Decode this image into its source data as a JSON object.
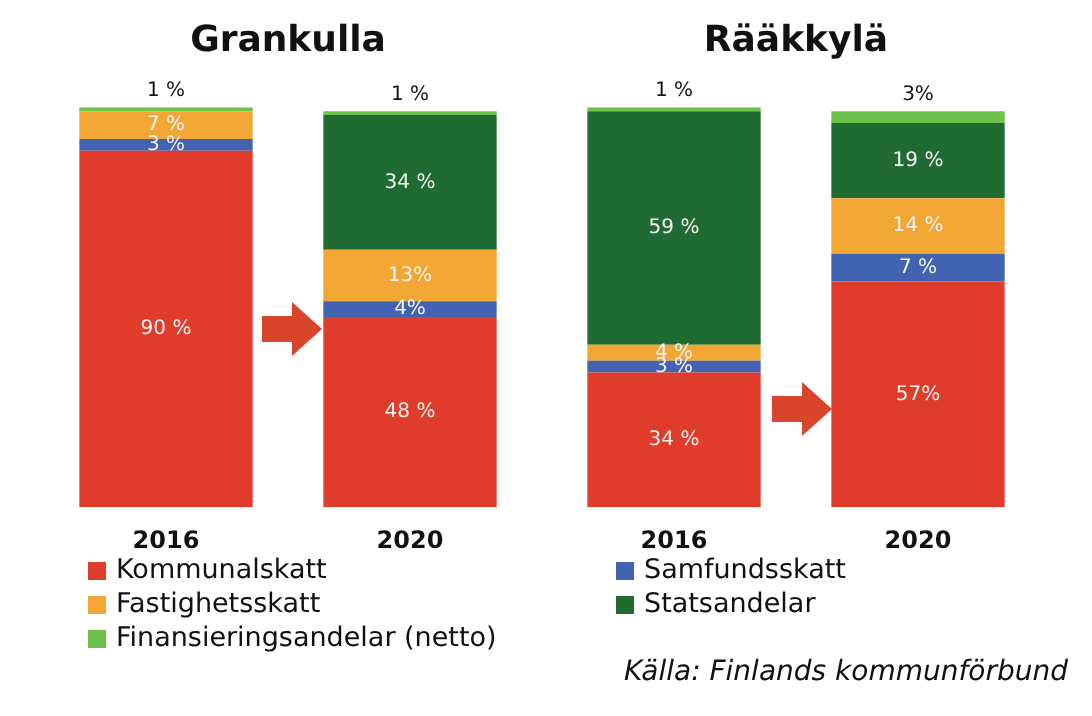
{
  "chart_data": [
    {
      "type": "bar",
      "title": "Grankulla",
      "categories": [
        "2016",
        "2020"
      ],
      "stacked": true,
      "legend": "bottom",
      "series": [
        {
          "name": "Kommunalskatt",
          "color": "#e03c2c",
          "values": [
            90,
            48
          ],
          "value_labels": [
            "90 %",
            "48 %"
          ]
        },
        {
          "name": "Samfundsskatt",
          "color": "#4262b2",
          "values": [
            3,
            4
          ],
          "value_labels": [
            "3 %",
            "4%"
          ]
        },
        {
          "name": "Fastighetsskatt",
          "color": "#f2a735",
          "values": [
            7,
            13
          ],
          "value_labels": [
            "7 %",
            "13%"
          ]
        },
        {
          "name": "Statsandelar",
          "color": "#1f6b32",
          "values": [
            null,
            34
          ],
          "value_labels": [
            null,
            "34 %"
          ]
        },
        {
          "name": "Finansieringsandelar (netto)",
          "color": "#6cc24a",
          "values": [
            1,
            1
          ],
          "value_labels": [
            "1 %",
            "1 %"
          ]
        }
      ]
    },
    {
      "type": "bar",
      "title": "Rääkkylä",
      "categories": [
        "2016",
        "2020"
      ],
      "stacked": true,
      "annotations": [
        "Källa: Finlands kommunförbund"
      ],
      "series": [
        {
          "color": "#e03c2c",
          "values": [
            34,
            57
          ],
          "value_labels": [
            "34 %",
            "57%"
          ]
        },
        {
          "color": "#4262b2",
          "values": [
            3,
            7
          ],
          "value_labels": [
            "3 %",
            "7 %"
          ]
        },
        {
          "color": "#f2a735",
          "values": [
            4,
            14
          ],
          "value_labels": [
            "4 %",
            "14 %"
          ]
        },
        {
          "color": "#1f6b32",
          "values": [
            59,
            19
          ],
          "value_labels": [
            "59 %",
            "19 %"
          ]
        },
        {
          "color": "#6cc24a",
          "values": [
            1,
            3
          ],
          "value_labels": [
            "1 %",
            "3%"
          ]
        }
      ]
    }
  ]
}
